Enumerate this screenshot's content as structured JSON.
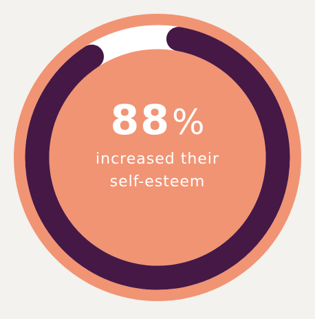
{
  "chart_data": {
    "type": "pie",
    "variant": "donut-progress",
    "value_percent": 88,
    "value_text": "88",
    "unit": "%",
    "caption_lines": [
      "increased their",
      "self-esteem"
    ]
  },
  "colors": {
    "background": "#f3f2ee",
    "disc": "#f19474",
    "track": "#ffffff",
    "progress": "#451846",
    "text": "#ffffff"
  }
}
